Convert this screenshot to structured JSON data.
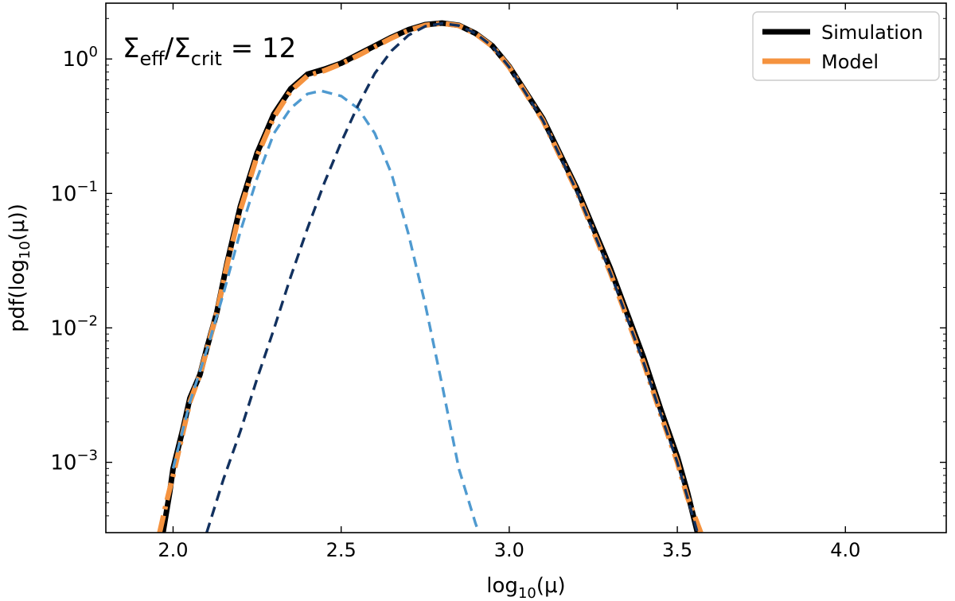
{
  "chart_data": {
    "type": "line",
    "title": "",
    "annotation": {
      "sigma": "Σ",
      "sub_eff": "eff",
      "slash": "/",
      "sub_crit": "crit",
      "equals": " = 12"
    },
    "xlabel": {
      "prefix": "log",
      "sub": "10",
      "suffix": "(μ)"
    },
    "ylabel": {
      "prefix": "pdf(log",
      "sub": "10",
      "suffix": "(μ))"
    },
    "xlim": [
      1.8,
      4.3
    ],
    "ylim": [
      0.0003,
      2.6
    ],
    "yscale": "log",
    "xticks": [
      {
        "value": 2.0,
        "label": "2.0"
      },
      {
        "value": 2.5,
        "label": "2.5"
      },
      {
        "value": 3.0,
        "label": "3.0"
      },
      {
        "value": 3.5,
        "label": "3.5"
      },
      {
        "value": 4.0,
        "label": "4.0"
      }
    ],
    "yticks": [
      {
        "value": 1,
        "base": "10",
        "exp": "0"
      },
      {
        "value": 0.1,
        "base": "10",
        "exp": "−1"
      },
      {
        "value": 0.01,
        "base": "10",
        "exp": "−2"
      },
      {
        "value": 0.001,
        "base": "10",
        "exp": "−3"
      }
    ],
    "legend": {
      "position": "top-right",
      "entries": [
        "Simulation",
        "Model"
      ]
    },
    "grid": false,
    "series": [
      {
        "name": "Simulation",
        "color": "#000000",
        "style": "solid",
        "x": [
          1.97,
          1.99,
          2.0,
          2.03,
          2.05,
          2.08,
          2.1,
          2.13,
          2.16,
          2.2,
          2.25,
          2.3,
          2.35,
          2.4,
          2.45,
          2.5,
          2.55,
          2.6,
          2.65,
          2.7,
          2.75,
          2.8,
          2.85,
          2.9,
          2.95,
          3.0,
          3.1,
          3.2,
          3.3,
          3.4,
          3.45,
          3.5,
          3.53,
          3.56
        ],
        "y": [
          0.0003,
          0.0006,
          0.0009,
          0.0018,
          0.003,
          0.0045,
          0.007,
          0.013,
          0.03,
          0.08,
          0.2,
          0.39,
          0.6,
          0.77,
          0.84,
          0.93,
          1.08,
          1.25,
          1.45,
          1.65,
          1.8,
          1.85,
          1.78,
          1.55,
          1.25,
          0.88,
          0.36,
          0.11,
          0.028,
          0.006,
          0.0025,
          0.0011,
          0.0006,
          0.0003
        ]
      },
      {
        "name": "Model",
        "color": "#f5933f",
        "style": "dashdot",
        "x": [
          1.96,
          1.98,
          2.0,
          2.03,
          2.05,
          2.08,
          2.1,
          2.13,
          2.16,
          2.2,
          2.25,
          2.3,
          2.35,
          2.4,
          2.45,
          2.5,
          2.55,
          2.6,
          2.65,
          2.7,
          2.75,
          2.8,
          2.85,
          2.9,
          2.95,
          3.0,
          3.1,
          3.2,
          3.3,
          3.4,
          3.45,
          3.5,
          3.53,
          3.57
        ],
        "y": [
          0.0003,
          0.0005,
          0.0008,
          0.0017,
          0.0028,
          0.0045,
          0.0068,
          0.013,
          0.029,
          0.075,
          0.19,
          0.37,
          0.58,
          0.75,
          0.82,
          0.92,
          1.06,
          1.23,
          1.43,
          1.63,
          1.78,
          1.84,
          1.77,
          1.54,
          1.24,
          0.87,
          0.35,
          0.105,
          0.026,
          0.0055,
          0.0023,
          0.001,
          0.00055,
          0.0003
        ]
      },
      {
        "name": "",
        "color": "#4f9ad0",
        "style": "dashed",
        "x": [
          2.0,
          2.05,
          2.1,
          2.15,
          2.2,
          2.25,
          2.3,
          2.35,
          2.4,
          2.44,
          2.5,
          2.55,
          2.6,
          2.65,
          2.7,
          2.75,
          2.8,
          2.85,
          2.9,
          2.91
        ],
        "y": [
          0.0009,
          0.0028,
          0.0068,
          0.018,
          0.052,
          0.13,
          0.28,
          0.43,
          0.55,
          0.58,
          0.53,
          0.43,
          0.28,
          0.14,
          0.05,
          0.015,
          0.0038,
          0.0009,
          0.00035,
          0.0003
        ]
      },
      {
        "name": "",
        "color": "#12315f",
        "style": "dashed",
        "x": [
          2.1,
          2.15,
          2.2,
          2.25,
          2.3,
          2.35,
          2.4,
          2.45,
          2.5,
          2.55,
          2.6,
          2.65,
          2.7,
          2.75,
          2.8,
          2.85,
          2.9,
          2.95,
          3.0,
          3.1,
          3.2,
          3.3,
          3.4,
          3.45,
          3.5,
          3.53,
          3.56
        ],
        "y": [
          0.0003,
          0.00075,
          0.0017,
          0.0042,
          0.0098,
          0.024,
          0.055,
          0.12,
          0.24,
          0.45,
          0.78,
          1.15,
          1.5,
          1.75,
          1.84,
          1.77,
          1.55,
          1.24,
          0.87,
          0.35,
          0.105,
          0.026,
          0.0055,
          0.0023,
          0.001,
          0.00055,
          0.0003
        ]
      }
    ]
  }
}
